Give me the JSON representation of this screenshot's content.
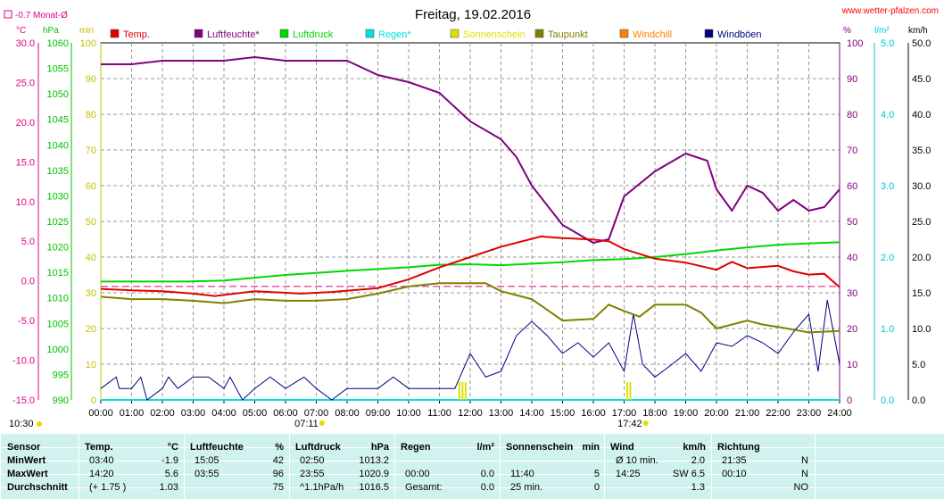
{
  "title": "Freitag, 19.02.2016",
  "site": "www.wetter-pfalzen.com",
  "avg_note": "-0.7 Monat-Ø",
  "unit_labels": {
    "temp": "°C",
    "pressure": "hPa",
    "minutes": "min",
    "percent": "%",
    "rain": "l/m²",
    "wind": "km/h"
  },
  "legend": [
    {
      "label": "Temp.",
      "color": "#e00000"
    },
    {
      "label": "Luftfeuchte*",
      "color": "#800080"
    },
    {
      "label": "Luftdruck",
      "color": "#00d800"
    },
    {
      "label": "Regen*",
      "color": "#00e0e0"
    },
    {
      "label": "Sonnenschein",
      "color": "#e0e000"
    },
    {
      "label": "Taupunkt",
      "color": "#808000"
    },
    {
      "label": "Windchill",
      "color": "#ff8000"
    },
    {
      "label": "Windböen",
      "color": "#000080"
    }
  ],
  "axes": {
    "temp_ticks": [
      "30.0",
      "25.0",
      "20.0",
      "15.0",
      "10.0",
      "5.0",
      "0.0",
      "-5.0",
      "-10.0",
      "-15.0"
    ],
    "pressure_ticks": [
      "1060",
      "1055",
      "1050",
      "1045",
      "1040",
      "1035",
      "1030",
      "1025",
      "1020",
      "1015",
      "1010",
      "1005",
      "1000",
      "995",
      "990"
    ],
    "minutes_ticks": [
      "100",
      "90",
      "80",
      "70",
      "60",
      "50",
      "40",
      "30",
      "20",
      "10",
      "0"
    ],
    "percent_ticks": [
      "100",
      "90",
      "80",
      "70",
      "60",
      "50",
      "40",
      "30",
      "20",
      "10",
      "0"
    ],
    "rain_ticks": [
      "5.0",
      "4.0",
      "3.0",
      "2.0",
      "1.0",
      "0.0"
    ],
    "wind_ticks": [
      "50.0",
      "45.0",
      "40.0",
      "35.0",
      "30.0",
      "25.0",
      "20.0",
      "15.0",
      "10.0",
      "5.0",
      "0.0"
    ],
    "time_ticks": [
      "00:00",
      "01:00",
      "02:00",
      "03:00",
      "04:00",
      "05:00",
      "06:00",
      "07:00",
      "08:00",
      "09:00",
      "10:00",
      "11:00",
      "12:00",
      "13:00",
      "14:00",
      "15:00",
      "16:00",
      "17:00",
      "18:00",
      "19:00",
      "20:00",
      "21:00",
      "22:00",
      "23:00",
      "24:00"
    ],
    "sunrise": "07:11",
    "sunset": "17:42",
    "day_length": "10:30"
  },
  "chart_data": {
    "type": "line",
    "title": "Freitag, 19.02.2016",
    "x_unit": "hour",
    "ylim_temp": [
      -15,
      30
    ],
    "ylim_pressure": [
      990,
      1060
    ],
    "ylim_percent": [
      0,
      100
    ],
    "ylim_wind": [
      0,
      50
    ],
    "grid": true,
    "series": [
      {
        "name": "Temp.",
        "unit": "°C",
        "points": [
          [
            0,
            -1.0
          ],
          [
            1,
            -1.2
          ],
          [
            2,
            -1.3
          ],
          [
            3,
            -1.6
          ],
          [
            3.7,
            -1.9
          ],
          [
            5,
            -1.3
          ],
          [
            6.5,
            -1.6
          ],
          [
            7.5,
            -1.4
          ],
          [
            9,
            -0.9
          ],
          [
            10,
            0.2
          ],
          [
            11,
            1.7
          ],
          [
            12,
            3.0
          ],
          [
            13,
            4.3
          ],
          [
            14.3,
            5.6
          ],
          [
            15,
            5.4
          ],
          [
            16,
            5.2
          ],
          [
            16.5,
            5.0
          ],
          [
            17,
            4.0
          ],
          [
            18,
            2.8
          ],
          [
            19,
            2.3
          ],
          [
            20,
            1.4
          ],
          [
            20.5,
            2.4
          ],
          [
            21,
            1.6
          ],
          [
            22,
            1.9
          ],
          [
            22.5,
            1.2
          ],
          [
            23,
            0.8
          ],
          [
            23.5,
            0.9
          ],
          [
            24,
            -0.8
          ]
        ]
      },
      {
        "name": "Luftfeuchte*",
        "unit": "%",
        "points": [
          [
            0,
            94
          ],
          [
            1,
            94
          ],
          [
            2,
            95
          ],
          [
            3,
            95
          ],
          [
            4,
            95
          ],
          [
            5,
            96
          ],
          [
            6,
            95
          ],
          [
            7,
            95
          ],
          [
            8,
            95
          ],
          [
            9,
            91
          ],
          [
            10,
            89
          ],
          [
            11,
            86
          ],
          [
            12,
            78
          ],
          [
            13,
            73
          ],
          [
            13.5,
            68
          ],
          [
            14,
            60
          ],
          [
            15,
            49
          ],
          [
            16,
            44
          ],
          [
            16.5,
            45
          ],
          [
            17,
            57
          ],
          [
            18,
            64
          ],
          [
            19,
            69
          ],
          [
            19.7,
            67
          ],
          [
            20,
            59
          ],
          [
            20.5,
            53
          ],
          [
            21,
            60
          ],
          [
            21.5,
            58
          ],
          [
            22,
            53
          ],
          [
            22.5,
            56
          ],
          [
            23,
            53
          ],
          [
            23.5,
            54
          ],
          [
            24,
            59
          ]
        ]
      },
      {
        "name": "Luftdruck",
        "unit": "hPa",
        "points": [
          [
            0,
            1013.2
          ],
          [
            2.83,
            1013.2
          ],
          [
            4,
            1013.4
          ],
          [
            6,
            1014.5
          ],
          [
            8,
            1015.3
          ],
          [
            10,
            1016.0
          ],
          [
            11,
            1016.5
          ],
          [
            12,
            1016.6
          ],
          [
            13,
            1016.4
          ],
          [
            14,
            1016.7
          ],
          [
            15,
            1017.0
          ],
          [
            16,
            1017.4
          ],
          [
            17,
            1017.6
          ],
          [
            18,
            1018.0
          ],
          [
            19,
            1018.6
          ],
          [
            20,
            1019.3
          ],
          [
            21,
            1019.9
          ],
          [
            22,
            1020.4
          ],
          [
            23,
            1020.7
          ],
          [
            24,
            1020.9
          ]
        ]
      },
      {
        "name": "Taupunkt",
        "unit": "°C",
        "points": [
          [
            0,
            -2.0
          ],
          [
            1,
            -2.3
          ],
          [
            2,
            -2.3
          ],
          [
            3,
            -2.5
          ],
          [
            4,
            -2.8
          ],
          [
            5,
            -2.3
          ],
          [
            6,
            -2.5
          ],
          [
            7,
            -2.5
          ],
          [
            8,
            -2.3
          ],
          [
            9,
            -1.6
          ],
          [
            10,
            -0.7
          ],
          [
            11,
            -0.3
          ],
          [
            12,
            -0.3
          ],
          [
            12.5,
            -0.3
          ],
          [
            13,
            -1.3
          ],
          [
            14,
            -2.3
          ],
          [
            15,
            -5.0
          ],
          [
            16,
            -4.8
          ],
          [
            16.5,
            -3.0
          ],
          [
            17,
            -3.8
          ],
          [
            17.5,
            -4.5
          ],
          [
            18,
            -3.0
          ],
          [
            19,
            -3.0
          ],
          [
            19.5,
            -4.0
          ],
          [
            20,
            -6.0
          ],
          [
            21,
            -5.0
          ],
          [
            21.5,
            -5.5
          ],
          [
            22,
            -5.8
          ],
          [
            23,
            -6.5
          ],
          [
            24,
            -6.3
          ]
        ]
      },
      {
        "name": "Windböen",
        "unit": "km/h",
        "points": [
          [
            0,
            1.6
          ],
          [
            0.5,
            3.2
          ],
          [
            0.6,
            1.6
          ],
          [
            1,
            1.6
          ],
          [
            1.3,
            3.2
          ],
          [
            1.5,
            0
          ],
          [
            2,
            1.6
          ],
          [
            2.2,
            3.2
          ],
          [
            2.5,
            1.6
          ],
          [
            3,
            3.2
          ],
          [
            3.5,
            3.2
          ],
          [
            4,
            1.6
          ],
          [
            4.2,
            3.2
          ],
          [
            4.6,
            0
          ],
          [
            5,
            1.6
          ],
          [
            5.5,
            3.2
          ],
          [
            6,
            1.6
          ],
          [
            6.6,
            3.2
          ],
          [
            7,
            1.6
          ],
          [
            7.5,
            0
          ],
          [
            8,
            1.6
          ],
          [
            9,
            1.6
          ],
          [
            9.5,
            3.2
          ],
          [
            10,
            1.6
          ],
          [
            11,
            1.6
          ],
          [
            11.5,
            1.6
          ],
          [
            12,
            6.5
          ],
          [
            12.5,
            3.2
          ],
          [
            13,
            4.0
          ],
          [
            13.5,
            9.0
          ],
          [
            14,
            11.0
          ],
          [
            14.5,
            9.0
          ],
          [
            15,
            6.5
          ],
          [
            15.5,
            8.0
          ],
          [
            16,
            6.0
          ],
          [
            16.5,
            8.0
          ],
          [
            17,
            4.0
          ],
          [
            17.3,
            12.0
          ],
          [
            17.6,
            5.0
          ],
          [
            18,
            3.2
          ],
          [
            18.5,
            4.8
          ],
          [
            19,
            6.5
          ],
          [
            19.5,
            4.0
          ],
          [
            20,
            8.0
          ],
          [
            20.5,
            7.5
          ],
          [
            21,
            9.0
          ],
          [
            21.5,
            8.0
          ],
          [
            22,
            6.5
          ],
          [
            22.5,
            9.5
          ],
          [
            23,
            12.0
          ],
          [
            23.3,
            4.0
          ],
          [
            23.6,
            14.0
          ],
          [
            24,
            5.0
          ]
        ]
      },
      {
        "name": "Regen*",
        "unit": "l/m²",
        "points": [
          [
            0,
            0
          ],
          [
            24,
            0
          ]
        ]
      },
      {
        "name": "Sonnenschein",
        "unit": "min",
        "bars": [
          [
            11.65,
            5
          ],
          [
            11.75,
            5
          ],
          [
            11.85,
            5
          ],
          [
            17.1,
            5
          ],
          [
            17.2,
            5
          ]
        ]
      }
    ],
    "reference_line": {
      "name": "Monat-Ø",
      "unit": "°C",
      "value": -0.7
    }
  },
  "table": {
    "headers": [
      {
        "label": "Sensor"
      },
      {
        "label": "Temp.",
        "unit": "°C"
      },
      {
        "label": "Luftfeuchte",
        "unit": "%"
      },
      {
        "label": "Luftdruck",
        "unit": "hPa"
      },
      {
        "label": "Regen",
        "unit": "l/m²"
      },
      {
        "label": "Sonnenschein",
        "unit": "min"
      },
      {
        "label": "Wind",
        "unit": "km/h"
      },
      {
        "label": "Richtung"
      }
    ],
    "rows": [
      {
        "label": "MinWert",
        "temp_time": "03:40",
        "temp": "-1.9",
        "hum_time": "15:05",
        "hum": "42",
        "press_time": "02:50",
        "press": "1013.2",
        "rain_time": "",
        "rain": "",
        "sun_time": "",
        "sun": "",
        "wind_time": "Ø 10 min.",
        "wind": "2.0",
        "dir_time": "21:35",
        "dir": "N"
      },
      {
        "label": "MaxWert",
        "temp_time": "14:20",
        "temp": "5.6",
        "hum_time": "03:55",
        "hum": "96",
        "press_time": "23:55",
        "press": "1020.9",
        "rain_time": "00:00",
        "rain": "0.0",
        "sun_time": "11:40",
        "sun": "5",
        "wind_time": "14:25",
        "wind": "SW 6.5",
        "dir_time": "00:10",
        "dir": "N"
      },
      {
        "label": "Durchschnitt",
        "temp_time": "(+ 1.75 )",
        "temp": "1.03",
        "hum_time": "",
        "hum": "75",
        "press_time": "^1.1hPa/h",
        "press": "1016.5",
        "rain_time": "Gesamt:",
        "rain": "0.0",
        "sun_time": "25 min.",
        "sun": "0",
        "wind_time": "",
        "wind": "1.3",
        "dir_time": "",
        "dir": "NO"
      }
    ]
  }
}
